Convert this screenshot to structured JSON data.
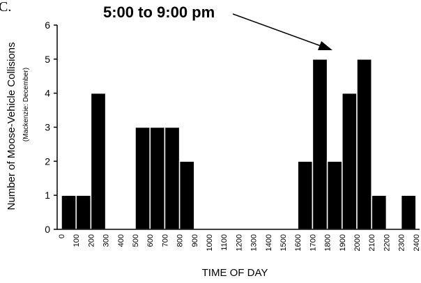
{
  "panel_letter": "C.",
  "chart_data": {
    "type": "bar",
    "categories": [
      "0",
      "100",
      "200",
      "300",
      "400",
      "500",
      "600",
      "700",
      "800",
      "900",
      "1000",
      "1100",
      "1200",
      "1300",
      "1400",
      "1500",
      "1600",
      "1700",
      "1800",
      "1900",
      "2000",
      "2100",
      "2200",
      "2300",
      "2400"
    ],
    "values": [
      1,
      1,
      4,
      0,
      0,
      3,
      3,
      3,
      2,
      0,
      0,
      0,
      0,
      0,
      0,
      0,
      2,
      5,
      2,
      4,
      5,
      1,
      0,
      1,
      0
    ],
    "title": "",
    "xlabel": "TIME OF DAY",
    "ylabel": "Number of Moose-Vehicle Collisions",
    "ylabel_sub": "(Mackenzie: December)",
    "ylim": [
      0,
      6
    ],
    "yticks": [
      0,
      1,
      2,
      3,
      4,
      5,
      6
    ],
    "annotation": "5:00 to 9:00 pm",
    "bar_color": "#000000",
    "bar_edge_color": "#ffffff",
    "grid": false
  }
}
